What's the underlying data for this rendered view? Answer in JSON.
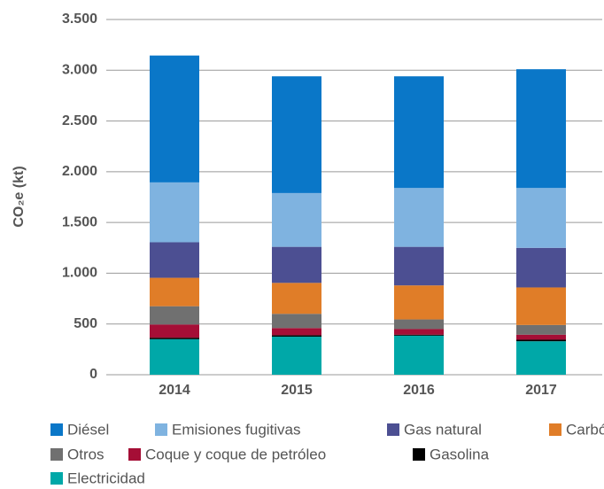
{
  "chart_data": {
    "type": "stacked_bar",
    "y_label": "CO₂e (kt)",
    "categories": [
      "2014",
      "2015",
      "2016",
      "2017"
    ],
    "series": [
      {
        "name": "Diésel",
        "color": "#0a77c8",
        "values": [
          1250,
          1150,
          1100,
          1170
        ]
      },
      {
        "name": "Emisiones fugitivas",
        "color": "#7fb3e0",
        "values": [
          590,
          530,
          580,
          590
        ]
      },
      {
        "name": "Gas natural",
        "color": "#4c4f92",
        "values": [
          350,
          355,
          380,
          390
        ]
      },
      {
        "name": "Carbón",
        "color": "#e07d28",
        "values": [
          280,
          305,
          335,
          370
        ]
      },
      {
        "name": "Otros",
        "color": "#707070",
        "values": [
          180,
          140,
          95,
          95
        ]
      },
      {
        "name": "Coque y coque de petróleo",
        "color": "#a50e36",
        "values": [
          130,
          70,
          55,
          50
        ]
      },
      {
        "name": "Gasolina",
        "color": "#000000",
        "values": [
          15,
          15,
          10,
          15
        ]
      },
      {
        "name": "Electricidad",
        "color": "#00a8a8",
        "values": [
          350,
          375,
          385,
          330
        ]
      }
    ],
    "ylim": [
      0,
      3500
    ],
    "yticks": [
      0,
      500,
      {
        "value": 1000,
        "label": "1.000"
      },
      {
        "value": 1500,
        "label": "1.500"
      },
      {
        "value": 2000,
        "label": "2.000"
      },
      {
        "value": 2500,
        "label": "2.500"
      },
      {
        "value": 3000,
        "label": "3.000"
      },
      {
        "value": 3500,
        "label": "3.500"
      }
    ],
    "grid": true
  }
}
